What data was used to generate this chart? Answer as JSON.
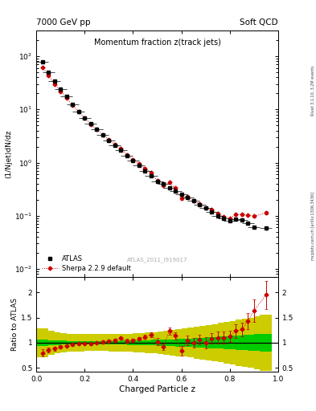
{
  "title_main": "Momentum fraction z(track jets)",
  "header_left": "7000 GeV pp",
  "header_right": "Soft QCD",
  "watermark": "ATLAS_2011_I919017",
  "right_label_top": "Rivet 3.1.10, 3.2M events",
  "right_label_bot": "mcplots.cern.ch [arXiv:1306.3436]",
  "xlabel": "Charged Particle z",
  "ylabel_main": "(1/Njet)dN/dz",
  "ylabel_ratio": "Ratio to ATLAS",
  "atlas_x": [
    0.025,
    0.05,
    0.075,
    0.1,
    0.125,
    0.15,
    0.175,
    0.2,
    0.225,
    0.25,
    0.275,
    0.3,
    0.325,
    0.35,
    0.375,
    0.4,
    0.425,
    0.45,
    0.475,
    0.5,
    0.525,
    0.55,
    0.575,
    0.6,
    0.625,
    0.65,
    0.675,
    0.7,
    0.725,
    0.75,
    0.775,
    0.8,
    0.825,
    0.85,
    0.875,
    0.9,
    0.95
  ],
  "atlas_y": [
    78.0,
    50.0,
    34.0,
    24.0,
    17.5,
    12.5,
    9.2,
    7.0,
    5.4,
    4.2,
    3.3,
    2.6,
    2.1,
    1.7,
    1.35,
    1.1,
    0.88,
    0.7,
    0.56,
    0.45,
    0.4,
    0.34,
    0.29,
    0.25,
    0.22,
    0.19,
    0.16,
    0.14,
    0.12,
    0.1,
    0.088,
    0.08,
    0.085,
    0.083,
    0.072,
    0.06,
    0.058
  ],
  "atlas_xerr": [
    0.025,
    0.025,
    0.025,
    0.025,
    0.025,
    0.025,
    0.025,
    0.025,
    0.025,
    0.025,
    0.025,
    0.025,
    0.025,
    0.025,
    0.025,
    0.025,
    0.025,
    0.025,
    0.025,
    0.025,
    0.025,
    0.025,
    0.025,
    0.025,
    0.025,
    0.025,
    0.025,
    0.025,
    0.025,
    0.025,
    0.025,
    0.025,
    0.025,
    0.025,
    0.025,
    0.025,
    0.025
  ],
  "atlas_yerr": [
    3.0,
    1.5,
    0.9,
    0.6,
    0.35,
    0.28,
    0.22,
    0.16,
    0.12,
    0.1,
    0.08,
    0.07,
    0.055,
    0.045,
    0.038,
    0.032,
    0.026,
    0.021,
    0.017,
    0.013,
    0.012,
    0.01,
    0.009,
    0.008,
    0.007,
    0.006,
    0.006,
    0.005,
    0.005,
    0.004,
    0.004,
    0.004,
    0.004,
    0.004,
    0.003,
    0.003,
    0.004
  ],
  "sherpa_x": [
    0.025,
    0.05,
    0.075,
    0.1,
    0.125,
    0.15,
    0.175,
    0.2,
    0.225,
    0.25,
    0.275,
    0.3,
    0.325,
    0.35,
    0.375,
    0.4,
    0.425,
    0.45,
    0.475,
    0.5,
    0.525,
    0.55,
    0.575,
    0.6,
    0.625,
    0.65,
    0.675,
    0.7,
    0.725,
    0.75,
    0.775,
    0.8,
    0.825,
    0.85,
    0.875,
    0.9,
    0.95
  ],
  "sherpa_y": [
    62.0,
    43.0,
    30.0,
    22.0,
    16.5,
    12.0,
    9.0,
    6.9,
    5.3,
    4.2,
    3.35,
    2.7,
    2.2,
    1.85,
    1.4,
    1.15,
    0.95,
    0.78,
    0.65,
    0.46,
    0.37,
    0.42,
    0.33,
    0.21,
    0.23,
    0.19,
    0.17,
    0.14,
    0.13,
    0.11,
    0.097,
    0.09,
    0.105,
    0.105,
    0.103,
    0.098,
    0.113
  ],
  "sherpa_yerr": [
    2.0,
    1.2,
    0.8,
    0.5,
    0.3,
    0.22,
    0.16,
    0.12,
    0.1,
    0.08,
    0.07,
    0.06,
    0.05,
    0.04,
    0.035,
    0.03,
    0.025,
    0.02,
    0.016,
    0.013,
    0.011,
    0.01,
    0.009,
    0.008,
    0.008,
    0.007,
    0.006,
    0.006,
    0.005,
    0.005,
    0.004,
    0.004,
    0.005,
    0.005,
    0.005,
    0.005,
    0.008
  ],
  "ratio_y": [
    0.795,
    0.86,
    0.882,
    0.917,
    0.943,
    0.96,
    0.978,
    0.986,
    0.981,
    1.0,
    1.015,
    1.038,
    1.048,
    1.088,
    1.037,
    1.045,
    1.08,
    1.114,
    1.161,
    1.022,
    0.925,
    1.235,
    1.138,
    0.84,
    1.045,
    1.0,
    1.063,
    1.0,
    1.083,
    1.1,
    1.102,
    1.125,
    1.235,
    1.265,
    1.431,
    1.633,
    1.948
  ],
  "ratio_yerr": [
    0.07,
    0.05,
    0.035,
    0.028,
    0.022,
    0.022,
    0.022,
    0.022,
    0.022,
    0.022,
    0.025,
    0.028,
    0.03,
    0.03,
    0.035,
    0.035,
    0.038,
    0.04,
    0.045,
    0.065,
    0.065,
    0.07,
    0.07,
    0.095,
    0.095,
    0.095,
    0.095,
    0.105,
    0.105,
    0.115,
    0.115,
    0.115,
    0.135,
    0.135,
    0.165,
    0.22,
    0.28
  ],
  "band_green_lo": [
    0.94,
    0.95,
    0.955,
    0.96,
    0.962,
    0.963,
    0.964,
    0.965,
    0.965,
    0.965,
    0.964,
    0.963,
    0.962,
    0.96,
    0.958,
    0.955,
    0.952,
    0.948,
    0.944,
    0.94,
    0.935,
    0.93,
    0.925,
    0.92,
    0.914,
    0.908,
    0.902,
    0.895,
    0.888,
    0.88,
    0.872,
    0.864,
    0.856,
    0.848,
    0.84,
    0.832,
    0.82
  ],
  "band_green_hi": [
    1.06,
    1.05,
    1.045,
    1.04,
    1.038,
    1.037,
    1.036,
    1.035,
    1.035,
    1.035,
    1.036,
    1.037,
    1.038,
    1.04,
    1.042,
    1.045,
    1.048,
    1.052,
    1.056,
    1.06,
    1.065,
    1.07,
    1.075,
    1.08,
    1.086,
    1.092,
    1.098,
    1.105,
    1.112,
    1.12,
    1.128,
    1.136,
    1.144,
    1.152,
    1.16,
    1.168,
    1.18
  ],
  "band_yellow_lo": [
    0.72,
    0.76,
    0.79,
    0.81,
    0.82,
    0.825,
    0.83,
    0.832,
    0.833,
    0.833,
    0.832,
    0.83,
    0.827,
    0.823,
    0.818,
    0.812,
    0.805,
    0.796,
    0.786,
    0.775,
    0.763,
    0.75,
    0.736,
    0.721,
    0.705,
    0.688,
    0.67,
    0.651,
    0.631,
    0.61,
    0.589,
    0.567,
    0.545,
    0.523,
    0.5,
    0.477,
    0.44
  ],
  "band_yellow_hi": [
    1.28,
    1.24,
    1.21,
    1.19,
    1.18,
    1.175,
    1.17,
    1.168,
    1.167,
    1.167,
    1.168,
    1.17,
    1.173,
    1.177,
    1.182,
    1.188,
    1.195,
    1.204,
    1.214,
    1.225,
    1.237,
    1.25,
    1.264,
    1.279,
    1.295,
    1.312,
    1.33,
    1.349,
    1.369,
    1.39,
    1.411,
    1.433,
    1.455,
    1.477,
    1.5,
    1.523,
    1.56
  ],
  "atlas_color": "#000000",
  "sherpa_color": "#cc0000",
  "green_color": "#00cc00",
  "yellow_color": "#cccc00",
  "xlim": [
    0.0,
    1.0
  ],
  "ylim_main_log": [
    0.007,
    300
  ],
  "ylim_ratio": [
    0.42,
    2.3
  ],
  "ratio_yticks": [
    0.5,
    1.0,
    1.5,
    2.0
  ]
}
